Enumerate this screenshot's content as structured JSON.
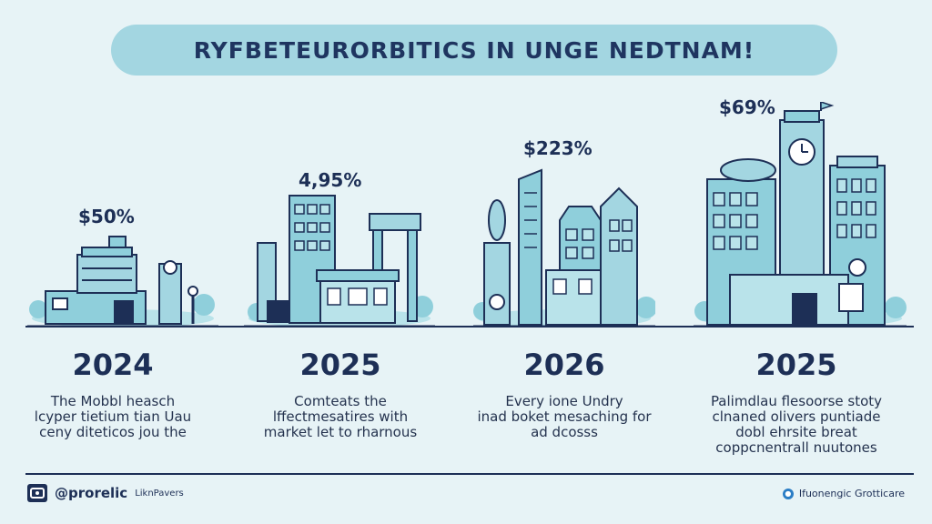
{
  "title": "RYFBETEURORBITICS IN UNGE NEDTNAM!",
  "colors": {
    "background": "#e7f3f6",
    "title_pill": "#a3d6e1",
    "ink": "#1d2f56",
    "building_fill": "#8fcfdb",
    "building_light": "#b9e3ea"
  },
  "stages": [
    {
      "percent": "$50%",
      "year": "2024",
      "description": [
        "The Mobbl heasch",
        "lcyper tietium tian Uau",
        "ceny diteticos jou the"
      ]
    },
    {
      "percent": "4,95%",
      "year": "2025",
      "description": [
        "Comteats the",
        "lffectmesatires with",
        "market let to rharnous"
      ]
    },
    {
      "percent": "$223%",
      "year": "2026",
      "description": [
        "Every ione Undry",
        "inad boket mesaching for",
        "ad dcosss"
      ]
    },
    {
      "percent": "$69%",
      "year": "2025",
      "description": [
        "Palimdlau flesoorse stoty",
        "clnaned olivers puntiade",
        "dobl ehrsite breat",
        "coppcnentrall nuutones"
      ]
    }
  ],
  "footer": {
    "handle": "@prorelic",
    "sub_label": "LiknPavers",
    "right_text": "Ifuonengic Grotticare"
  }
}
